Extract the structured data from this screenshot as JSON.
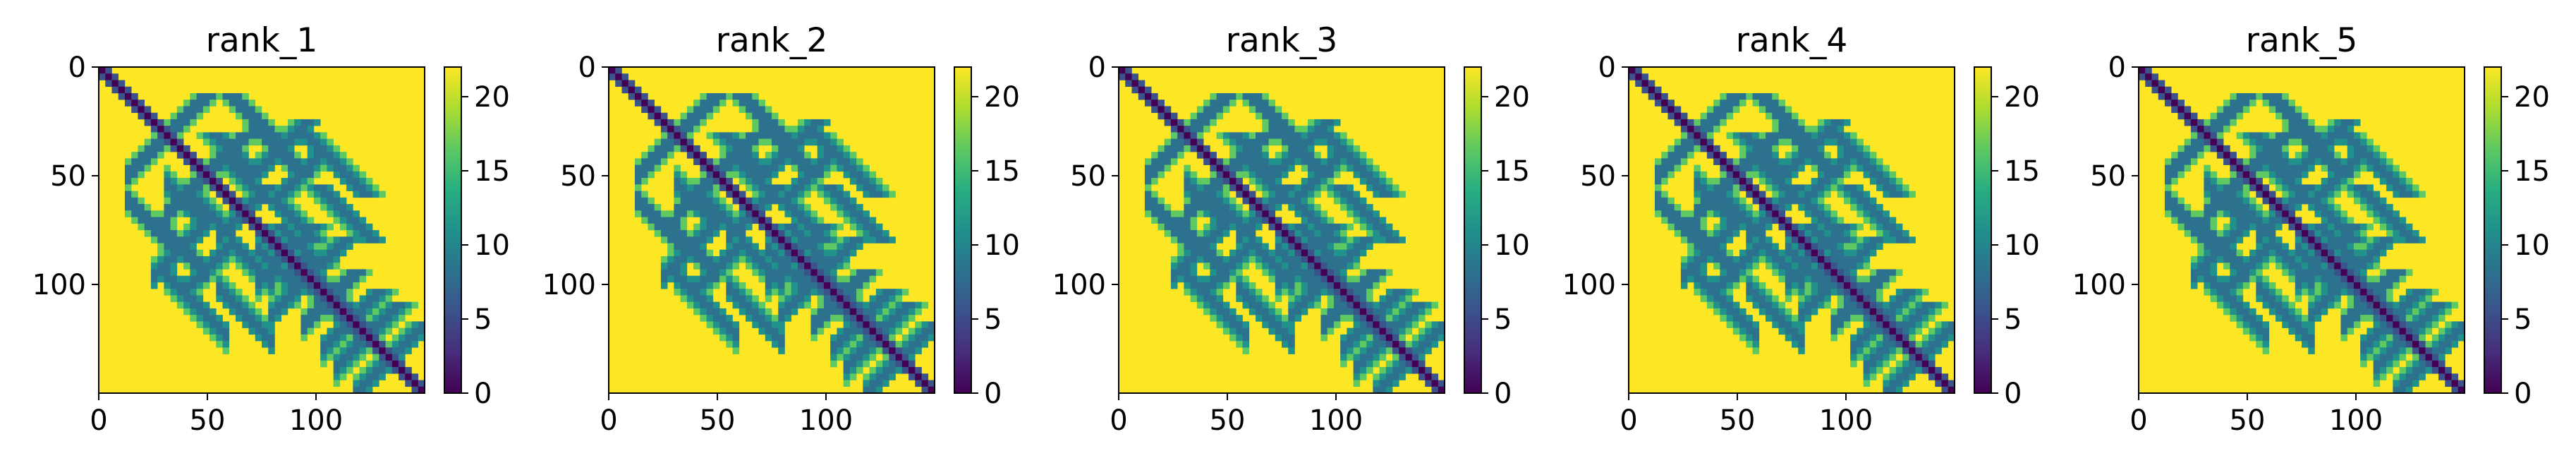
{
  "chart_data": [
    {
      "type": "heatmap",
      "title": "rank_1",
      "x_ticks": [
        0,
        50,
        100
      ],
      "y_ticks": [
        0,
        50,
        100
      ],
      "xlim": [
        0,
        149
      ],
      "ylim": [
        149,
        0
      ],
      "colorbar": {
        "min": 0,
        "max": 22,
        "ticks": [
          0,
          5,
          10,
          15,
          20
        ]
      },
      "colormap": "viridis"
    },
    {
      "type": "heatmap",
      "title": "rank_2",
      "x_ticks": [
        0,
        50,
        100
      ],
      "y_ticks": [
        0,
        50,
        100
      ],
      "xlim": [
        0,
        149
      ],
      "ylim": [
        149,
        0
      ],
      "colorbar": {
        "min": 0,
        "max": 22,
        "ticks": [
          0,
          5,
          10,
          15,
          20
        ]
      },
      "colormap": "viridis"
    },
    {
      "type": "heatmap",
      "title": "rank_3",
      "x_ticks": [
        0,
        50,
        100
      ],
      "y_ticks": [
        0,
        50,
        100
      ],
      "xlim": [
        0,
        149
      ],
      "ylim": [
        149,
        0
      ],
      "colorbar": {
        "min": 0,
        "max": 22,
        "ticks": [
          0,
          5,
          10,
          15,
          20
        ]
      },
      "colormap": "viridis"
    },
    {
      "type": "heatmap",
      "title": "rank_4",
      "x_ticks": [
        0,
        50,
        100
      ],
      "y_ticks": [
        0,
        50,
        100
      ],
      "xlim": [
        0,
        149
      ],
      "ylim": [
        149,
        0
      ],
      "colorbar": {
        "min": 0,
        "max": 22,
        "ticks": [
          0,
          5,
          10,
          15,
          20
        ]
      },
      "colormap": "viridis"
    },
    {
      "type": "heatmap",
      "title": "rank_5",
      "x_ticks": [
        0,
        50,
        100
      ],
      "y_ticks": [
        0,
        50,
        100
      ],
      "xlim": [
        0,
        149
      ],
      "ylim": [
        149,
        0
      ],
      "colorbar": {
        "min": 0,
        "max": 22,
        "ticks": [
          0,
          5,
          10,
          15,
          20
        ]
      },
      "colormap": "viridis"
    }
  ]
}
